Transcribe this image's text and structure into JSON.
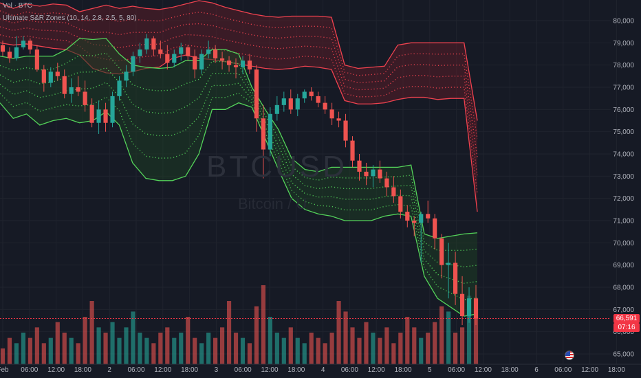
{
  "header": {
    "line1": "Vol · BTC",
    "line2": "Ultimate S&R Zones (10, 14, 2.8, 2.5, 5, 80)"
  },
  "watermark": {
    "symbol": "BTCUSD",
    "name": "Bitcoin / U"
  },
  "colors": {
    "background": "#161a25",
    "up": "#26a69a",
    "down": "#ef5350",
    "resistance_line": "#f0424f",
    "resistance_fill": "#5a1e28",
    "support_line": "#54d35a",
    "support_fill": "#1d3d25",
    "grid": "#20242e"
  },
  "price_label": {
    "price": "66,591",
    "countdown": "07:16"
  },
  "event_icon": "us-flag-icon",
  "chart_data": {
    "type": "candlestick",
    "title": "",
    "y_axis": {
      "ticks": [
        "80,000",
        "79,000",
        "78,000",
        "77,000",
        "76,000",
        "75,000",
        "74,000",
        "73,000",
        "72,000",
        "71,000",
        "70,000",
        "69,000",
        "68,000",
        "67,000",
        "66,000",
        "65,000"
      ],
      "range": [
        64500,
        80900
      ]
    },
    "x_axis": {
      "ticks": [
        "Feb",
        "06:00",
        "12:00",
        "18:00",
        "2",
        "06:00",
        "12:00",
        "18:00",
        "3",
        "06:00",
        "12:00",
        "18:00",
        "4",
        "06:00",
        "12:00",
        "18:00",
        "5",
        "06:00",
        "12:00",
        "18:00",
        "6",
        "06:00",
        "12:00",
        "18:00"
      ]
    },
    "last_price": 66591,
    "series": [
      {
        "name": "Resistance zone",
        "upper": [
          80800,
          80550,
          80750,
          80650,
          80750,
          80700,
          80400,
          80550,
          80700,
          80550,
          80650,
          80550,
          80500,
          80600,
          80750,
          80900,
          80800,
          80600,
          80450,
          80300,
          80200,
          80150,
          80200,
          80200,
          80200,
          80150,
          78000,
          77850,
          77900,
          77950,
          78900,
          79000,
          79000,
          79000,
          79000,
          79000,
          75500
        ],
        "lower": [
          79000,
          78900,
          78950,
          78850,
          78750,
          78700,
          78450,
          77850,
          77650,
          77600,
          77700,
          77850,
          77900,
          78300,
          78450,
          78300,
          78250,
          78150,
          78050,
          77950,
          77850,
          77800,
          77850,
          77950,
          77900,
          77800,
          76400,
          76250,
          76250,
          76300,
          76450,
          76550,
          76550,
          76450,
          76500,
          76500,
          71400
        ]
      },
      {
        "name": "Support zone",
        "upper": [
          78400,
          78300,
          78400,
          78400,
          78400,
          78700,
          79200,
          79150,
          79200,
          78500,
          78000,
          77900,
          77850,
          77900,
          78200,
          78200,
          78700,
          78700,
          78500,
          77000,
          76000,
          75100,
          73800,
          73300,
          73200,
          73400,
          73400,
          73400,
          73400,
          73400,
          73400,
          73500,
          70400,
          70200,
          70300,
          70400,
          70450
        ],
        "lower": [
          76300,
          75600,
          75800,
          75300,
          75500,
          75600,
          75400,
          75500,
          75900,
          75300,
          73600,
          72900,
          72800,
          72800,
          73000,
          74000,
          76000,
          76000,
          76300,
          76100,
          74700,
          73300,
          72000,
          71500,
          71300,
          71200,
          71000,
          71000,
          71000,
          71200,
          71300,
          71200,
          68500,
          67500,
          67100,
          66700,
          66800
        ]
      }
    ],
    "candles": [
      {
        "o": 78900,
        "h": 79100,
        "l": 78400,
        "c": 78600
      },
      {
        "o": 78600,
        "h": 78800,
        "l": 78100,
        "c": 78300
      },
      {
        "o": 78300,
        "h": 79300,
        "l": 78200,
        "c": 78800
      },
      {
        "o": 78800,
        "h": 79300,
        "l": 78700,
        "c": 79100
      },
      {
        "o": 79100,
        "h": 79200,
        "l": 78500,
        "c": 78700
      },
      {
        "o": 78700,
        "h": 78900,
        "l": 77700,
        "c": 77800
      },
      {
        "o": 77800,
        "h": 78000,
        "l": 76800,
        "c": 77200
      },
      {
        "o": 77200,
        "h": 77900,
        "l": 77000,
        "c": 77700
      },
      {
        "o": 77700,
        "h": 78100,
        "l": 77300,
        "c": 77500
      },
      {
        "o": 77500,
        "h": 77800,
        "l": 76500,
        "c": 76700
      },
      {
        "o": 76700,
        "h": 77400,
        "l": 76300,
        "c": 77000
      },
      {
        "o": 77000,
        "h": 77500,
        "l": 76600,
        "c": 76800
      },
      {
        "o": 76800,
        "h": 77300,
        "l": 75900,
        "c": 76200
      },
      {
        "o": 76200,
        "h": 76500,
        "l": 75200,
        "c": 75400
      },
      {
        "o": 75400,
        "h": 76400,
        "l": 74900,
        "c": 76000
      },
      {
        "o": 76000,
        "h": 76300,
        "l": 75000,
        "c": 75400
      },
      {
        "o": 75400,
        "h": 76800,
        "l": 75200,
        "c": 76600
      },
      {
        "o": 76600,
        "h": 77500,
        "l": 76400,
        "c": 77300
      },
      {
        "o": 77300,
        "h": 78000,
        "l": 77000,
        "c": 77700
      },
      {
        "o": 77700,
        "h": 78600,
        "l": 77500,
        "c": 78400
      },
      {
        "o": 78400,
        "h": 79000,
        "l": 78100,
        "c": 78700
      },
      {
        "o": 78700,
        "h": 79400,
        "l": 78500,
        "c": 79200
      },
      {
        "o": 79200,
        "h": 79300,
        "l": 78400,
        "c": 78700
      },
      {
        "o": 78700,
        "h": 79100,
        "l": 78300,
        "c": 78500
      },
      {
        "o": 78500,
        "h": 78900,
        "l": 77800,
        "c": 78100
      },
      {
        "o": 78100,
        "h": 78700,
        "l": 77900,
        "c": 78500
      },
      {
        "o": 78500,
        "h": 79000,
        "l": 78200,
        "c": 78800
      },
      {
        "o": 78800,
        "h": 78900,
        "l": 78200,
        "c": 78400
      },
      {
        "o": 78400,
        "h": 78700,
        "l": 77400,
        "c": 77800
      },
      {
        "o": 77800,
        "h": 78700,
        "l": 77600,
        "c": 78500
      },
      {
        "o": 78500,
        "h": 79100,
        "l": 78300,
        "c": 78700
      },
      {
        "o": 78700,
        "h": 78900,
        "l": 78100,
        "c": 78300
      },
      {
        "o": 78300,
        "h": 78600,
        "l": 77800,
        "c": 78200
      },
      {
        "o": 78200,
        "h": 78400,
        "l": 77700,
        "c": 78000
      },
      {
        "o": 78000,
        "h": 78300,
        "l": 77400,
        "c": 77900
      },
      {
        "o": 77900,
        "h": 78400,
        "l": 77600,
        "c": 78200
      },
      {
        "o": 78200,
        "h": 78500,
        "l": 77600,
        "c": 77800
      },
      {
        "o": 77800,
        "h": 78000,
        "l": 75000,
        "c": 75600
      },
      {
        "o": 75600,
        "h": 76200,
        "l": 72900,
        "c": 74200
      },
      {
        "o": 74200,
        "h": 76100,
        "l": 73900,
        "c": 75800
      },
      {
        "o": 75800,
        "h": 76600,
        "l": 75500,
        "c": 76200
      },
      {
        "o": 76200,
        "h": 76800,
        "l": 75900,
        "c": 76500
      },
      {
        "o": 76500,
        "h": 76900,
        "l": 75800,
        "c": 76000
      },
      {
        "o": 76000,
        "h": 76700,
        "l": 75700,
        "c": 76500
      },
      {
        "o": 76500,
        "h": 76900,
        "l": 76300,
        "c": 76800
      },
      {
        "o": 76800,
        "h": 77000,
        "l": 76400,
        "c": 76600
      },
      {
        "o": 76600,
        "h": 76800,
        "l": 76100,
        "c": 76300
      },
      {
        "o": 76300,
        "h": 76600,
        "l": 75800,
        "c": 76000
      },
      {
        "o": 76000,
        "h": 76300,
        "l": 75300,
        "c": 75600
      },
      {
        "o": 75600,
        "h": 75900,
        "l": 75200,
        "c": 75500
      },
      {
        "o": 75500,
        "h": 75800,
        "l": 74300,
        "c": 74600
      },
      {
        "o": 74600,
        "h": 74800,
        "l": 73400,
        "c": 73700
      },
      {
        "o": 73700,
        "h": 74000,
        "l": 72800,
        "c": 73200
      },
      {
        "o": 73200,
        "h": 73600,
        "l": 72600,
        "c": 73000
      },
      {
        "o": 73000,
        "h": 73500,
        "l": 72500,
        "c": 73300
      },
      {
        "o": 73300,
        "h": 73700,
        "l": 72700,
        "c": 72900
      },
      {
        "o": 72900,
        "h": 73200,
        "l": 72100,
        "c": 72500
      },
      {
        "o": 72500,
        "h": 73000,
        "l": 71800,
        "c": 72100
      },
      {
        "o": 72100,
        "h": 72400,
        "l": 71100,
        "c": 71400
      },
      {
        "o": 71400,
        "h": 71700,
        "l": 70700,
        "c": 71000
      },
      {
        "o": 71000,
        "h": 71200,
        "l": 70300,
        "c": 70900
      },
      {
        "o": 70900,
        "h": 71400,
        "l": 69100,
        "c": 71300
      },
      {
        "o": 71300,
        "h": 71900,
        "l": 70900,
        "c": 71100
      },
      {
        "o": 71100,
        "h": 71300,
        "l": 69700,
        "c": 70200
      },
      {
        "o": 70200,
        "h": 70400,
        "l": 68400,
        "c": 69000
      },
      {
        "o": 69000,
        "h": 70000,
        "l": 67500,
        "c": 69100
      },
      {
        "o": 69100,
        "h": 69600,
        "l": 67200,
        "c": 67700
      },
      {
        "o": 67700,
        "h": 68500,
        "l": 66300,
        "c": 66700
      },
      {
        "o": 66700,
        "h": 68000,
        "l": 66400,
        "c": 67500
      },
      {
        "o": 67500,
        "h": 68100,
        "l": 66300,
        "c": 66591
      }
    ],
    "volume": [
      3,
      5,
      4,
      6,
      5,
      7,
      4,
      5,
      8,
      6,
      5,
      4,
      9,
      12,
      7,
      6,
      8,
      5,
      7,
      10,
      6,
      5,
      4,
      6,
      7,
      5,
      6,
      9,
      5,
      4,
      6,
      5,
      7,
      12,
      6,
      5,
      4,
      11,
      15,
      9,
      6,
      5,
      7,
      5,
      4,
      6,
      5,
      4,
      6,
      12,
      10,
      7,
      5,
      8,
      6,
      5,
      7,
      4,
      6,
      9,
      7,
      5,
      6,
      8,
      11,
      10,
      6,
      7,
      13,
      9
    ]
  }
}
